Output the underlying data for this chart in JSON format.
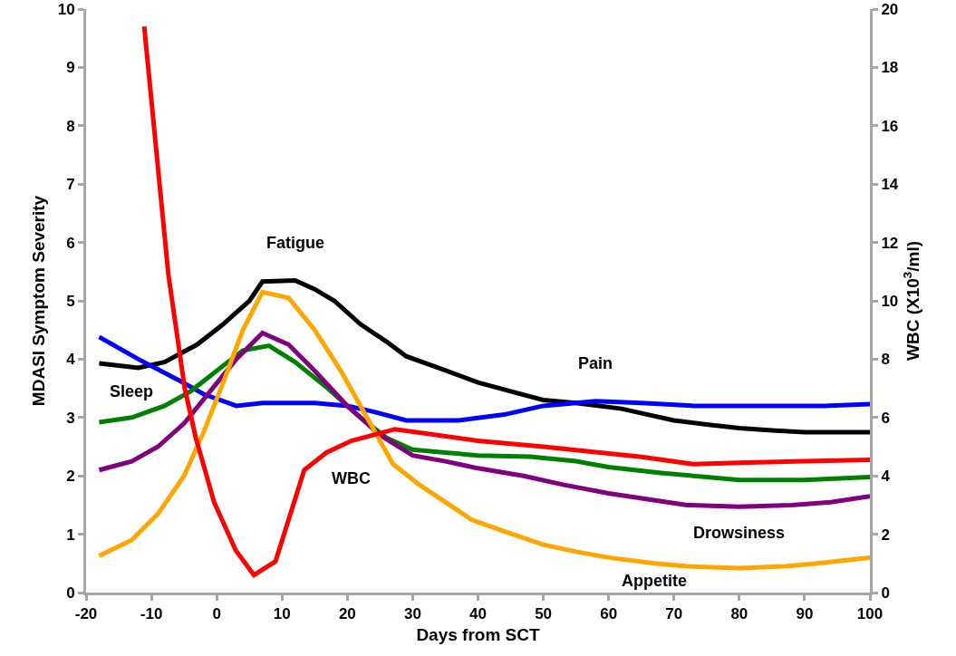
{
  "chart_data": {
    "type": "line",
    "xlabel": "Days from SCT",
    "ylabel": "MDASI Symptom Severity",
    "y2label": "WBC (X10$^{3}$/ml)",
    "xlim": [
      -20,
      100
    ],
    "xticks": [
      -20,
      -10,
      0,
      10,
      20,
      30,
      40,
      50,
      60,
      70,
      80,
      90,
      100
    ],
    "ylim": [
      0,
      10
    ],
    "yticks": [
      0,
      1,
      2,
      3,
      4,
      5,
      6,
      7,
      8,
      9,
      10
    ],
    "y2lim": [
      0,
      20
    ],
    "y2ticks": [
      0,
      2,
      4,
      6,
      8,
      10,
      12,
      14,
      16,
      18,
      20
    ],
    "grid": false,
    "legend": false,
    "marker": "none",
    "line_style": "solid",
    "series": [
      {
        "name": "Fatigue",
        "color": "#000000",
        "x": [
          -18,
          -12,
          -8,
          -3,
          1,
          5,
          7,
          12,
          15,
          18,
          22,
          26,
          29,
          34,
          40,
          45,
          50,
          55,
          62,
          66,
          70,
          75,
          80,
          85,
          90,
          95,
          100
        ],
        "values": [
          3.93,
          3.85,
          3.95,
          4.25,
          4.6,
          5.0,
          5.33,
          5.35,
          5.2,
          5.0,
          4.6,
          4.3,
          4.05,
          3.85,
          3.6,
          3.45,
          3.3,
          3.25,
          3.15,
          3.05,
          2.95,
          2.88,
          2.82,
          2.78,
          2.75,
          2.75,
          2.75
        ]
      },
      {
        "name": "Pain",
        "color": "#0000ff",
        "x": [
          -18,
          -12,
          -6,
          -2,
          3,
          7,
          15,
          20,
          24,
          29,
          37,
          44,
          50,
          58,
          65,
          73,
          85,
          93,
          100
        ],
        "values": [
          4.38,
          4.0,
          3.65,
          3.4,
          3.2,
          3.25,
          3.25,
          3.2,
          3.1,
          2.95,
          2.95,
          3.05,
          3.2,
          3.28,
          3.25,
          3.2,
          3.2,
          3.2,
          3.23
        ]
      },
      {
        "name": "Sleep",
        "color": "#008000",
        "x": [
          -18,
          -13,
          -8,
          -4,
          0,
          4,
          8,
          12,
          17,
          22,
          26,
          30,
          35,
          40,
          48,
          55,
          60,
          68,
          75,
          80,
          90,
          100
        ],
        "values": [
          2.92,
          3.0,
          3.2,
          3.45,
          3.8,
          4.15,
          4.23,
          3.95,
          3.5,
          3.0,
          2.65,
          2.45,
          2.4,
          2.35,
          2.33,
          2.25,
          2.15,
          2.05,
          1.98,
          1.93,
          1.93,
          1.98
        ]
      },
      {
        "name": "Drowsiness",
        "color": "#800080",
        "x": [
          -18,
          -13,
          -9,
          -5,
          -1,
          3,
          7,
          11,
          15,
          20,
          25,
          30,
          35,
          40,
          47,
          53,
          60,
          66,
          72,
          80,
          88,
          94,
          100
        ],
        "values": [
          2.1,
          2.25,
          2.5,
          2.9,
          3.45,
          4.0,
          4.45,
          4.25,
          3.8,
          3.2,
          2.7,
          2.35,
          2.25,
          2.13,
          2.0,
          1.85,
          1.7,
          1.6,
          1.5,
          1.47,
          1.5,
          1.55,
          1.65
        ]
      },
      {
        "name": "Appetite",
        "color": "#ffa500",
        "x": [
          -18,
          -13,
          -9,
          -5,
          -2,
          1,
          4,
          7,
          11,
          15,
          19,
          23,
          27,
          31,
          35,
          39,
          44,
          50,
          55,
          60,
          67,
          72,
          80,
          87,
          92,
          100
        ],
        "values": [
          0.63,
          0.9,
          1.35,
          2.0,
          2.75,
          3.6,
          4.5,
          5.15,
          5.05,
          4.5,
          3.8,
          3.0,
          2.2,
          1.85,
          1.55,
          1.25,
          1.05,
          0.82,
          0.7,
          0.6,
          0.5,
          0.45,
          0.42,
          0.45,
          0.5,
          0.6
        ]
      },
      {
        "name": "WBC",
        "color": "#ff0000",
        "axis": "y2",
        "x": [
          -11.1,
          -7.4,
          -4.9,
          -3.2,
          -0.4,
          2.9,
          5.7,
          9,
          13.4,
          16.8,
          20.6,
          27.3,
          40,
          50,
          65,
          73,
          80,
          90,
          100
        ],
        "values": [
          19.4,
          10.9,
          7.0,
          5.3,
          3.1,
          1.45,
          0.6,
          1.07,
          4.2,
          4.8,
          5.2,
          5.6,
          5.2,
          5.0,
          4.65,
          4.4,
          4.45,
          4.5,
          4.55
        ]
      }
    ]
  }
}
